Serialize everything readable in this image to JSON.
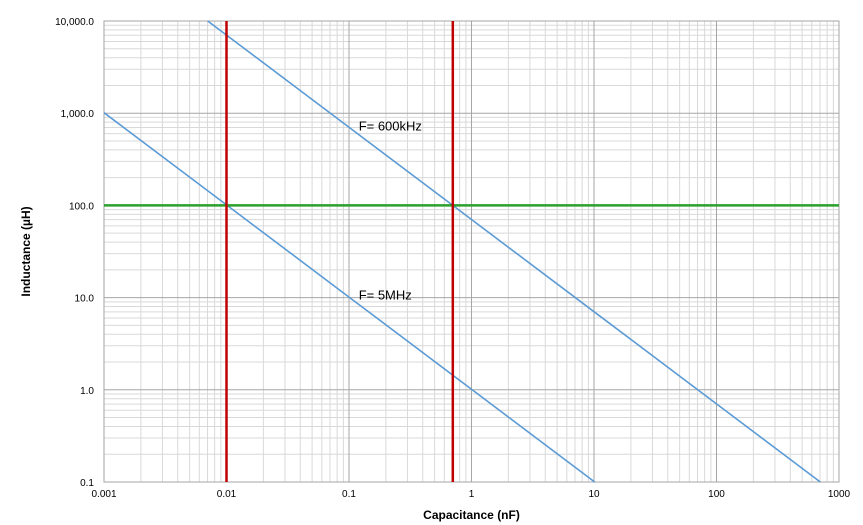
{
  "chart_data": {
    "type": "line",
    "title": "",
    "xlabel": "Capacitance (nF)",
    "ylabel": "Inductance (µH)",
    "x_scale": "log",
    "y_scale": "log",
    "xlim": [
      0.001,
      1000
    ],
    "ylim": [
      0.1,
      10000
    ],
    "x_ticks": [
      0.001,
      0.01,
      0.1,
      1,
      10,
      100,
      1000
    ],
    "x_tick_labels": [
      "0.001",
      "0.01",
      "0.1",
      "1",
      "10",
      "100",
      "1000"
    ],
    "y_ticks": [
      0.1,
      1,
      10,
      100,
      1000,
      10000
    ],
    "y_tick_labels": [
      "0.1",
      "1.0",
      "10.0",
      "100.0",
      "1,000.0",
      "10,000.0"
    ],
    "grid": true,
    "series": [
      {
        "name": "F= 600kHz",
        "color": "#5b9bd5",
        "x": [
          0.00703,
          0.01,
          0.1,
          0.7036,
          1,
          10,
          100,
          703.6
        ],
        "y": [
          10000,
          7036,
          703.6,
          100,
          70.36,
          7.036,
          0.7036,
          0.1
        ]
      },
      {
        "name": "F= 5MHz",
        "color": "#5b9bd5",
        "x": [
          0.001,
          0.01,
          0.1,
          1,
          10.13
        ],
        "y": [
          1013,
          101.3,
          10.13,
          1.013,
          0.1
        ]
      }
    ],
    "reference_lines": [
      {
        "orientation": "horizontal",
        "value": 100,
        "color": "#2ca02c"
      },
      {
        "orientation": "vertical",
        "value": 0.01,
        "color": "#c00000"
      },
      {
        "orientation": "vertical",
        "value": 0.7036,
        "color": "#c00000"
      }
    ],
    "annotations": [
      {
        "text": "F= 600kHz",
        "x": 0.12,
        "y": 650
      },
      {
        "text": "F= 5MHz",
        "x": 0.12,
        "y": 9.5
      }
    ]
  }
}
